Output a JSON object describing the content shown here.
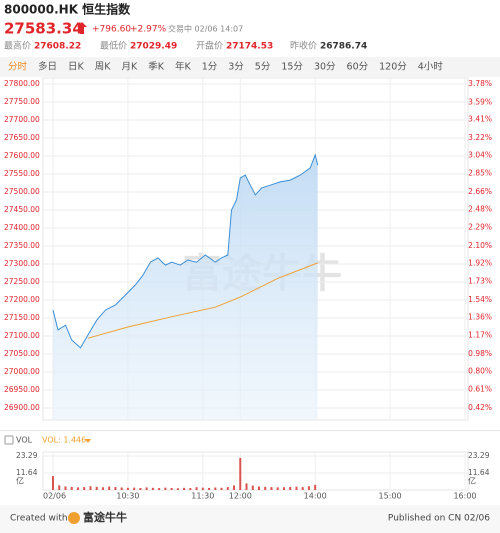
{
  "header": {
    "code": "800000.HK 恒生指数",
    "price": "27583.34",
    "change": "+796.60",
    "change_pct": "+2.97%",
    "status": "交易中 02/06 14:07",
    "stats": [
      {
        "label": "最高价",
        "value": "27608.22"
      },
      {
        "label": "最低价",
        "value": "27029.49"
      },
      {
        "label": "开盘价",
        "value": "27174.53"
      },
      {
        "label": "昨收价",
        "value": "26786.74"
      }
    ]
  },
  "tabs": [
    "分时",
    "多日",
    "日K",
    "周K",
    "月K",
    "季K",
    "年K",
    "1分",
    "3分",
    "5分",
    "15分",
    "30分",
    "60分",
    "120分",
    "4小时"
  ],
  "footer": {
    "created": "Created with",
    "brand": "富途牛牛",
    "published": "Published on CN 02/06"
  },
  "chart_data": [
    {
      "type": "line",
      "watermark": "富途牛牛",
      "grid": true,
      "xlim": [
        0,
        330
      ],
      "xticks": [
        {
          "value": 0,
          "label": "02/06"
        },
        {
          "value": 60,
          "label": "10:30"
        },
        {
          "value": 120,
          "label": "11:30"
        },
        {
          "value": 150,
          "label": "12:00"
        },
        {
          "value": 210,
          "label": "14:00"
        },
        {
          "value": 270,
          "label": "15:00"
        },
        {
          "value": 330,
          "label": "16:00"
        }
      ],
      "ylim": [
        26900,
        27800
      ],
      "yticks": [
        {
          "value": 27800,
          "label": "27800.00"
        },
        {
          "value": 27750,
          "label": "27750.00"
        },
        {
          "value": 27700,
          "label": "27700.00"
        },
        {
          "value": 27650,
          "label": "27650.00"
        },
        {
          "value": 27600,
          "label": "27600.00"
        },
        {
          "value": 27550,
          "label": "27550.00"
        },
        {
          "value": 27500,
          "label": "27500.00"
        },
        {
          "value": 27450,
          "label": "27450.00"
        },
        {
          "value": 27400,
          "label": "27400.00"
        },
        {
          "value": 27350,
          "label": "27350.00"
        },
        {
          "value": 27300,
          "label": "27300.00"
        },
        {
          "value": 27250,
          "label": "27250.00"
        },
        {
          "value": 27200,
          "label": "27200.00"
        },
        {
          "value": 27150,
          "label": "27150.00"
        },
        {
          "value": 27100,
          "label": "27100.00"
        },
        {
          "value": 27050,
          "label": "27050.00"
        },
        {
          "value": 27000,
          "label": "27000.00"
        },
        {
          "value": 26950,
          "label": "26950.00"
        },
        {
          "value": 26900,
          "label": "26900.00"
        }
      ],
      "y2lim": [
        0.42,
        3.78
      ],
      "y2ticks": [
        {
          "value": 3.78,
          "label": "3.78%"
        },
        {
          "value": 3.59,
          "label": "3.59%"
        },
        {
          "value": 3.41,
          "label": "3.41%"
        },
        {
          "value": 3.22,
          "label": "3.22%"
        },
        {
          "value": 3.04,
          "label": "3.04%"
        },
        {
          "value": 2.85,
          "label": "2.85%"
        },
        {
          "value": 2.66,
          "label": "2.66%"
        },
        {
          "value": 2.48,
          "label": "2.48%"
        },
        {
          "value": 2.29,
          "label": "2.29%"
        },
        {
          "value": 2.1,
          "label": "2.10%"
        },
        {
          "value": 1.92,
          "label": "1.92%"
        },
        {
          "value": 1.73,
          "label": "1.73%"
        },
        {
          "value": 1.54,
          "label": "1.54%"
        },
        {
          "value": 1.36,
          "label": "1.36%"
        },
        {
          "value": 1.17,
          "label": "1.17%"
        },
        {
          "value": 0.98,
          "label": "0.98%"
        },
        {
          "value": 0.8,
          "label": "0.80%"
        },
        {
          "value": 0.61,
          "label": "0.61%"
        },
        {
          "value": 0.42,
          "label": "0.42%"
        }
      ],
      "series": [
        {
          "color": "#3d8fd6",
          "x": [
            0,
            4,
            10,
            15,
            22,
            28,
            35,
            42,
            50,
            58,
            66,
            72,
            78,
            84,
            90,
            95,
            102,
            108,
            115,
            122,
            130,
            135,
            140,
            143,
            147,
            150,
            154,
            158,
            162,
            167,
            174,
            182,
            190,
            198,
            206,
            210,
            212
          ],
          "values": [
            27172,
            27117,
            27130,
            27089,
            27067,
            27103,
            27144,
            27172,
            27186,
            27214,
            27242,
            27269,
            27305,
            27317,
            27297,
            27305,
            27297,
            27311,
            27305,
            27325,
            27305,
            27317,
            27325,
            27450,
            27478,
            27539,
            27547,
            27519,
            27492,
            27511,
            27519,
            27528,
            27533,
            27547,
            27567,
            27603,
            27575
          ]
        },
        {
          "color": "#f0a030",
          "x": [
            28,
            60,
            97,
            130,
            150,
            180,
            212
          ],
          "values": [
            27094,
            27125,
            27155,
            27180,
            27208,
            27260,
            27303
          ]
        }
      ]
    },
    {
      "type": "bar",
      "title": "VOL",
      "indicator": "VOL: 1.446",
      "unit": "亿",
      "color": "#d9534f",
      "ylim": [
        0,
        23.29
      ],
      "yticks": [
        23.29,
        11.64
      ],
      "xlim": [
        0,
        330
      ],
      "x": [
        0,
        5,
        10,
        15,
        20,
        25,
        30,
        35,
        40,
        45,
        50,
        55,
        60,
        65,
        70,
        75,
        80,
        85,
        90,
        95,
        100,
        105,
        110,
        115,
        120,
        125,
        130,
        135,
        140,
        145,
        150,
        155,
        160,
        165,
        170,
        175,
        180,
        185,
        190,
        195,
        200,
        205,
        210
      ],
      "values": [
        9.5,
        3.2,
        2.5,
        2.1,
        1.8,
        2.0,
        2.6,
        2.2,
        1.9,
        2.4,
        2.0,
        1.7,
        1.5,
        1.6,
        1.4,
        1.8,
        1.5,
        1.3,
        1.6,
        1.4,
        1.2,
        1.5,
        1.3,
        1.9,
        1.6,
        1.4,
        1.7,
        1.5,
        2.0,
        3.1,
        22.0,
        4.5,
        3.0,
        2.4,
        2.2,
        2.0,
        1.8,
        1.9,
        2.1,
        2.3,
        2.0,
        2.6,
        3.5
      ]
    }
  ]
}
